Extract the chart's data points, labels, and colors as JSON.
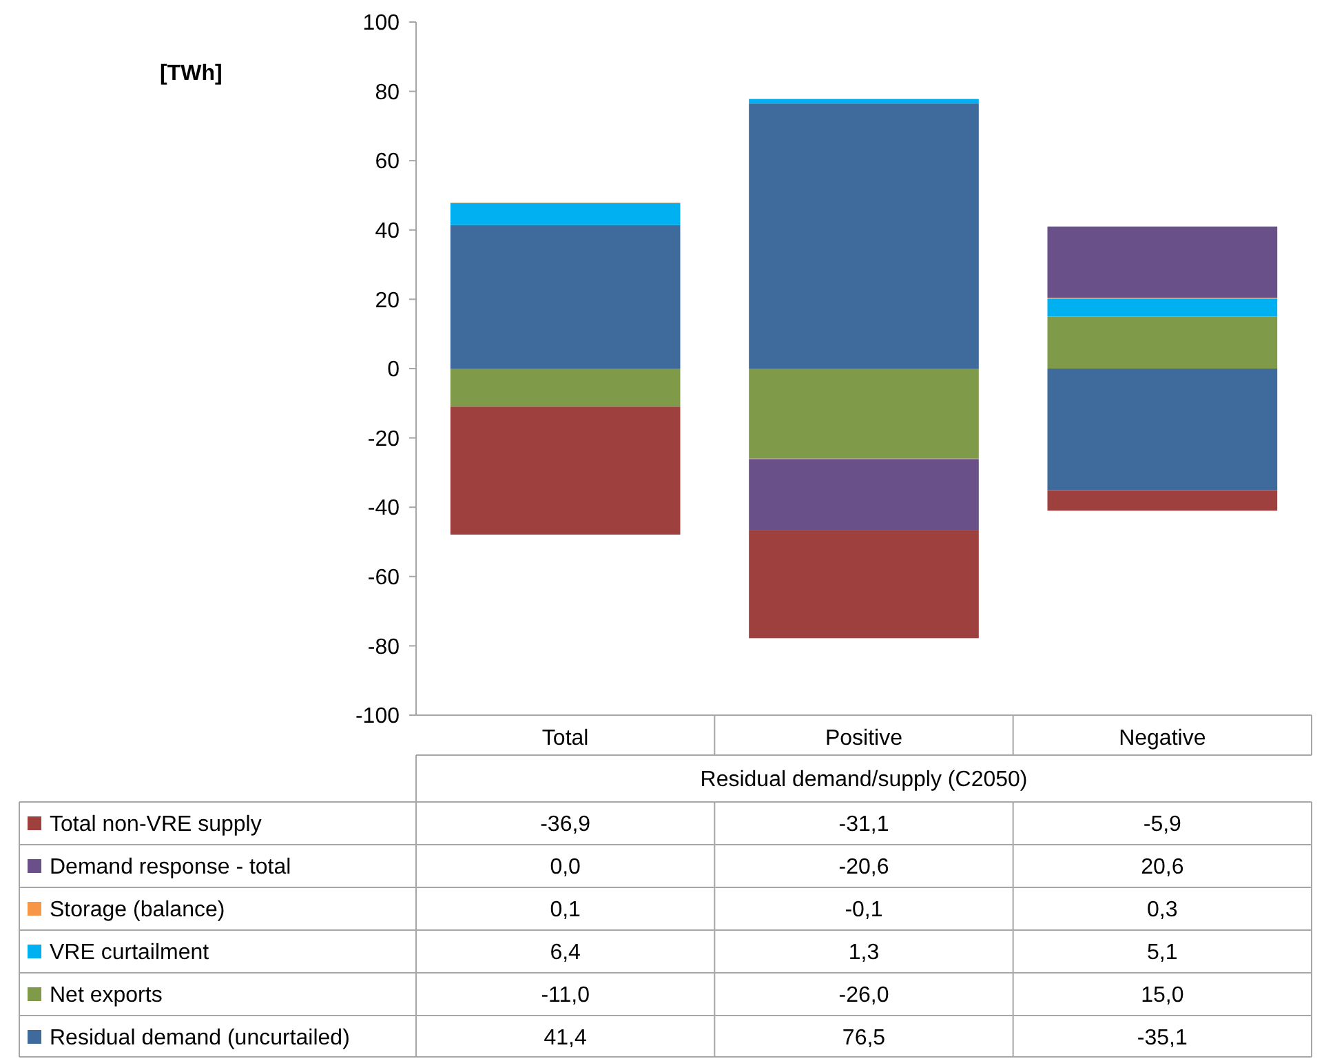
{
  "chart_data": {
    "type": "bar",
    "stacked": true,
    "annotations": [
      "[TWh]"
    ],
    "xlabel": "Residual demand/supply (C2050)",
    "categories": [
      "Total",
      "Positive",
      "Negative"
    ],
    "ylim": [
      -100,
      100
    ],
    "yticks": [
      -100,
      -80,
      -60,
      -40,
      -20,
      0,
      20,
      40,
      60,
      80,
      100
    ],
    "legend": "bottom",
    "grid": false,
    "series": [
      {
        "name": "Residual demand (uncurtailed)",
        "color": "#3e6a9c",
        "values": [
          41.4,
          76.5,
          -35.1
        ],
        "value_labels": [
          "41,4",
          "76,5",
          "-35,1"
        ]
      },
      {
        "name": "Net exports",
        "color": "#7f9a48",
        "values": [
          -11.0,
          -26.0,
          15.0
        ],
        "value_labels": [
          "-11,0",
          "-26,0",
          "15,0"
        ]
      },
      {
        "name": "VRE curtailment",
        "color": "#00b0f0",
        "values": [
          6.4,
          1.3,
          5.1
        ],
        "value_labels": [
          "6,4",
          "1,3",
          "5,1"
        ]
      },
      {
        "name": "Storage (balance)",
        "color": "#f79646",
        "values": [
          0.1,
          -0.1,
          0.3
        ],
        "value_labels": [
          "0,1",
          "-0,1",
          "0,3"
        ]
      },
      {
        "name": "Demand response - total",
        "color": "#6a5088",
        "values": [
          0.0,
          -20.6,
          20.6
        ],
        "value_labels": [
          "0,0",
          "-20,6",
          "20,6"
        ]
      },
      {
        "name": "Total non-VRE supply",
        "color": "#9e413e",
        "values": [
          -36.9,
          -31.1,
          -5.9
        ],
        "value_labels": [
          "-36,9",
          "-31,1",
          "-5,9"
        ]
      }
    ]
  }
}
